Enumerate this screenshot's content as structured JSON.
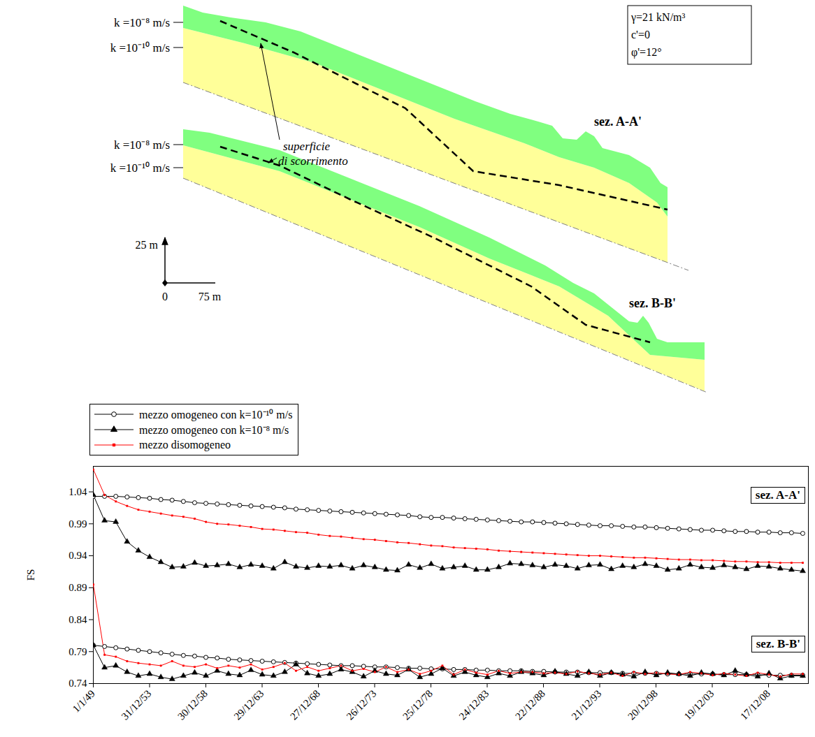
{
  "diagram": {
    "sections": [
      {
        "name": "sez. A-A'",
        "layers": [
          "k =10⁻⁸ m/s",
          "k =10⁻¹⁰ m/s"
        ]
      },
      {
        "name": "sez. B-B'",
        "layers": [
          "k =10⁻⁸ m/s",
          "k =10⁻¹⁰ m/s"
        ]
      }
    ],
    "slip_surface_label": [
      "superficie",
      "di scorrimento"
    ],
    "properties": [
      "γ=21 kN/m³",
      "c'=0",
      "φ'=12°"
    ],
    "scale": {
      "vertical": "25 m",
      "origin": "0",
      "horizontal": "75 m"
    }
  },
  "chart_data": {
    "type": "line",
    "y_label": "FS",
    "x": [
      "1949-01-01",
      "1950-01-01",
      "1951-01-01",
      "1952-01-01",
      "1953-01-01",
      "1954-01-01",
      "1955-01-01",
      "1956-01-01",
      "1957-01-01",
      "1958-01-01",
      "1959-01-01",
      "1960-01-01",
      "1961-01-01",
      "1962-01-01",
      "1963-01-01",
      "1964-01-01",
      "1965-01-01",
      "1966-01-01",
      "1967-01-01",
      "1968-01-01",
      "1969-01-01",
      "1970-01-01",
      "1971-01-01",
      "1972-01-01",
      "1973-01-01",
      "1974-01-01",
      "1975-01-01",
      "1976-01-01",
      "1977-01-01",
      "1978-01-01",
      "1979-01-01",
      "1980-01-01",
      "1981-01-01",
      "1982-01-01",
      "1983-01-01",
      "1984-01-01",
      "1985-01-01",
      "1986-01-01",
      "1987-01-01",
      "1988-01-01",
      "1989-01-01",
      "1990-01-01",
      "1991-01-01",
      "1992-01-01",
      "1993-01-01",
      "1994-01-01",
      "1995-01-01",
      "1996-01-01",
      "1997-01-01",
      "1998-01-01",
      "1999-01-01",
      "2000-01-01",
      "2001-01-01",
      "2002-01-01",
      "2003-01-01",
      "2004-01-01",
      "2005-01-01",
      "2006-01-01",
      "2007-01-01",
      "2008-01-01",
      "2009-01-01",
      "2010-01-01",
      "2011-01-01",
      "2012-01-01"
    ],
    "xlim": [
      "1949-01-01",
      "2012-07-01"
    ],
    "xticks": [
      {
        "value": "1949-01-01",
        "label": "1/1/49"
      },
      {
        "value": "1953-12-31",
        "label": "31/12/53"
      },
      {
        "value": "1958-12-30",
        "label": "30/12/58"
      },
      {
        "value": "1963-12-29",
        "label": "29/12/63"
      },
      {
        "value": "1968-12-27",
        "label": "27/12/68"
      },
      {
        "value": "1973-12-26",
        "label": "26/12/73"
      },
      {
        "value": "1978-12-25",
        "label": "25/12/78"
      },
      {
        "value": "1983-12-24",
        "label": "24/12/83"
      },
      {
        "value": "1988-12-22",
        "label": "22/12/88"
      },
      {
        "value": "1993-12-21",
        "label": "21/12/93"
      },
      {
        "value": "1998-12-20",
        "label": "20/12/98"
      },
      {
        "value": "2003-12-19",
        "label": "19/12/03"
      },
      {
        "value": "2008-12-17",
        "label": "17/12/08"
      }
    ],
    "ylim": [
      0.74,
      1.08
    ],
    "yticks": [
      0.74,
      0.79,
      0.84,
      0.89,
      0.94,
      0.99,
      1.04
    ],
    "grid": false,
    "legend": "top-left",
    "series": [
      {
        "name": "mezzo omogeneo con k=10⁻¹⁰ m/s",
        "group": "sez. A-A'",
        "color": "#000000",
        "marker": "circle",
        "values": [
          1.033,
          1.033,
          1.033,
          1.032,
          1.031,
          1.03,
          1.028,
          1.027,
          1.025,
          1.023,
          1.022,
          1.021,
          1.02,
          1.019,
          1.018,
          1.017,
          1.016,
          1.015,
          1.013,
          1.012,
          1.011,
          1.01,
          1.009,
          1.008,
          1.007,
          1.006,
          1.005,
          1.004,
          1.003,
          1.001,
          1.0,
          1.0,
          0.999,
          0.998,
          0.997,
          0.996,
          0.995,
          0.994,
          0.993,
          0.993,
          0.992,
          0.991,
          0.99,
          0.989,
          0.988,
          0.987,
          0.987,
          0.986,
          0.985,
          0.985,
          0.984,
          0.983,
          0.982,
          0.981,
          0.98,
          0.98,
          0.979,
          0.978,
          0.978,
          0.977,
          0.977,
          0.976,
          0.976,
          0.975
        ]
      },
      {
        "name": "mezzo omogeneo con k=10⁻⁸ m/s",
        "group": "sez. A-A'",
        "color": "#000000",
        "marker": "triangle",
        "values": [
          1.035,
          0.995,
          0.993,
          0.962,
          0.948,
          0.938,
          0.93,
          0.922,
          0.923,
          0.929,
          0.924,
          0.925,
          0.927,
          0.922,
          0.926,
          0.924,
          0.92,
          0.93,
          0.923,
          0.921,
          0.924,
          0.923,
          0.925,
          0.92,
          0.925,
          0.922,
          0.918,
          0.917,
          0.926,
          0.921,
          0.927,
          0.92,
          0.922,
          0.924,
          0.918,
          0.918,
          0.922,
          0.928,
          0.927,
          0.925,
          0.922,
          0.926,
          0.924,
          0.92,
          0.925,
          0.926,
          0.919,
          0.924,
          0.922,
          0.927,
          0.924,
          0.918,
          0.92,
          0.926,
          0.922,
          0.921,
          0.925,
          0.922,
          0.919,
          0.924,
          0.923,
          0.92,
          0.918,
          0.916
        ]
      },
      {
        "name": "mezzo disomogeneo",
        "group": "sez. A-A'",
        "color": "#ff0000",
        "marker": "square",
        "values": [
          1.075,
          1.035,
          1.025,
          1.018,
          1.012,
          1.009,
          1.006,
          1.003,
          1.001,
          0.998,
          0.993,
          0.99,
          0.989,
          0.987,
          0.985,
          0.982,
          0.981,
          0.979,
          0.977,
          0.976,
          0.973,
          0.971,
          0.97,
          0.968,
          0.966,
          0.965,
          0.963,
          0.961,
          0.96,
          0.958,
          0.956,
          0.955,
          0.953,
          0.952,
          0.951,
          0.95,
          0.948,
          0.947,
          0.946,
          0.945,
          0.944,
          0.943,
          0.942,
          0.941,
          0.94,
          0.94,
          0.939,
          0.938,
          0.937,
          0.937,
          0.936,
          0.935,
          0.934,
          0.934,
          0.933,
          0.933,
          0.932,
          0.931,
          0.931,
          0.93,
          0.93,
          0.929,
          0.929,
          0.929
        ]
      },
      {
        "name": "mezzo omogeneo con k=10⁻¹⁰ m/s",
        "group": "sez. B-B'",
        "color": "#000000",
        "marker": "circle",
        "values": [
          0.8,
          0.798,
          0.796,
          0.794,
          0.792,
          0.79,
          0.788,
          0.786,
          0.784,
          0.783,
          0.781,
          0.78,
          0.778,
          0.777,
          0.776,
          0.775,
          0.774,
          0.773,
          0.772,
          0.771,
          0.77,
          0.769,
          0.768,
          0.768,
          0.767,
          0.766,
          0.766,
          0.765,
          0.764,
          0.764,
          0.763,
          0.763,
          0.762,
          0.762,
          0.761,
          0.761,
          0.76,
          0.76,
          0.76,
          0.759,
          0.759,
          0.758,
          0.758,
          0.758,
          0.757,
          0.757,
          0.757,
          0.756,
          0.756,
          0.756,
          0.756,
          0.755,
          0.755,
          0.755,
          0.755,
          0.755,
          0.754,
          0.754,
          0.754,
          0.754,
          0.753,
          0.753,
          0.753,
          0.753
        ]
      },
      {
        "name": "mezzo omogeneo con k=10⁻⁸ m/s",
        "group": "sez. B-B'",
        "color": "#000000",
        "marker": "triangle",
        "values": [
          0.8,
          0.765,
          0.768,
          0.758,
          0.752,
          0.755,
          0.75,
          0.747,
          0.752,
          0.757,
          0.752,
          0.76,
          0.755,
          0.753,
          0.761,
          0.754,
          0.752,
          0.758,
          0.77,
          0.756,
          0.752,
          0.755,
          0.762,
          0.758,
          0.751,
          0.76,
          0.755,
          0.753,
          0.762,
          0.75,
          0.755,
          0.764,
          0.752,
          0.758,
          0.753,
          0.75,
          0.756,
          0.752,
          0.758,
          0.756,
          0.753,
          0.759,
          0.755,
          0.752,
          0.758,
          0.752,
          0.757,
          0.754,
          0.751,
          0.758,
          0.753,
          0.757,
          0.755,
          0.752,
          0.757,
          0.755,
          0.753,
          0.76,
          0.754,
          0.751,
          0.756,
          0.748,
          0.752,
          0.752
        ]
      },
      {
        "name": "mezzo disomogeneo",
        "group": "sez. B-B'",
        "color": "#ff0000",
        "marker": "square",
        "values": [
          0.895,
          0.785,
          0.782,
          0.775,
          0.772,
          0.77,
          0.768,
          0.775,
          0.768,
          0.766,
          0.77,
          0.764,
          0.768,
          0.765,
          0.77,
          0.762,
          0.766,
          0.772,
          0.76,
          0.766,
          0.76,
          0.764,
          0.768,
          0.76,
          0.763,
          0.758,
          0.766,
          0.758,
          0.762,
          0.755,
          0.76,
          0.768,
          0.754,
          0.762,
          0.757,
          0.754,
          0.76,
          0.756,
          0.758,
          0.758,
          0.756,
          0.757,
          0.755,
          0.759,
          0.756,
          0.754,
          0.757,
          0.752,
          0.758,
          0.755,
          0.757,
          0.755,
          0.754,
          0.758,
          0.756,
          0.753,
          0.756,
          0.754,
          0.752,
          0.757,
          0.754,
          0.751,
          0.755,
          0.755
        ]
      }
    ]
  }
}
